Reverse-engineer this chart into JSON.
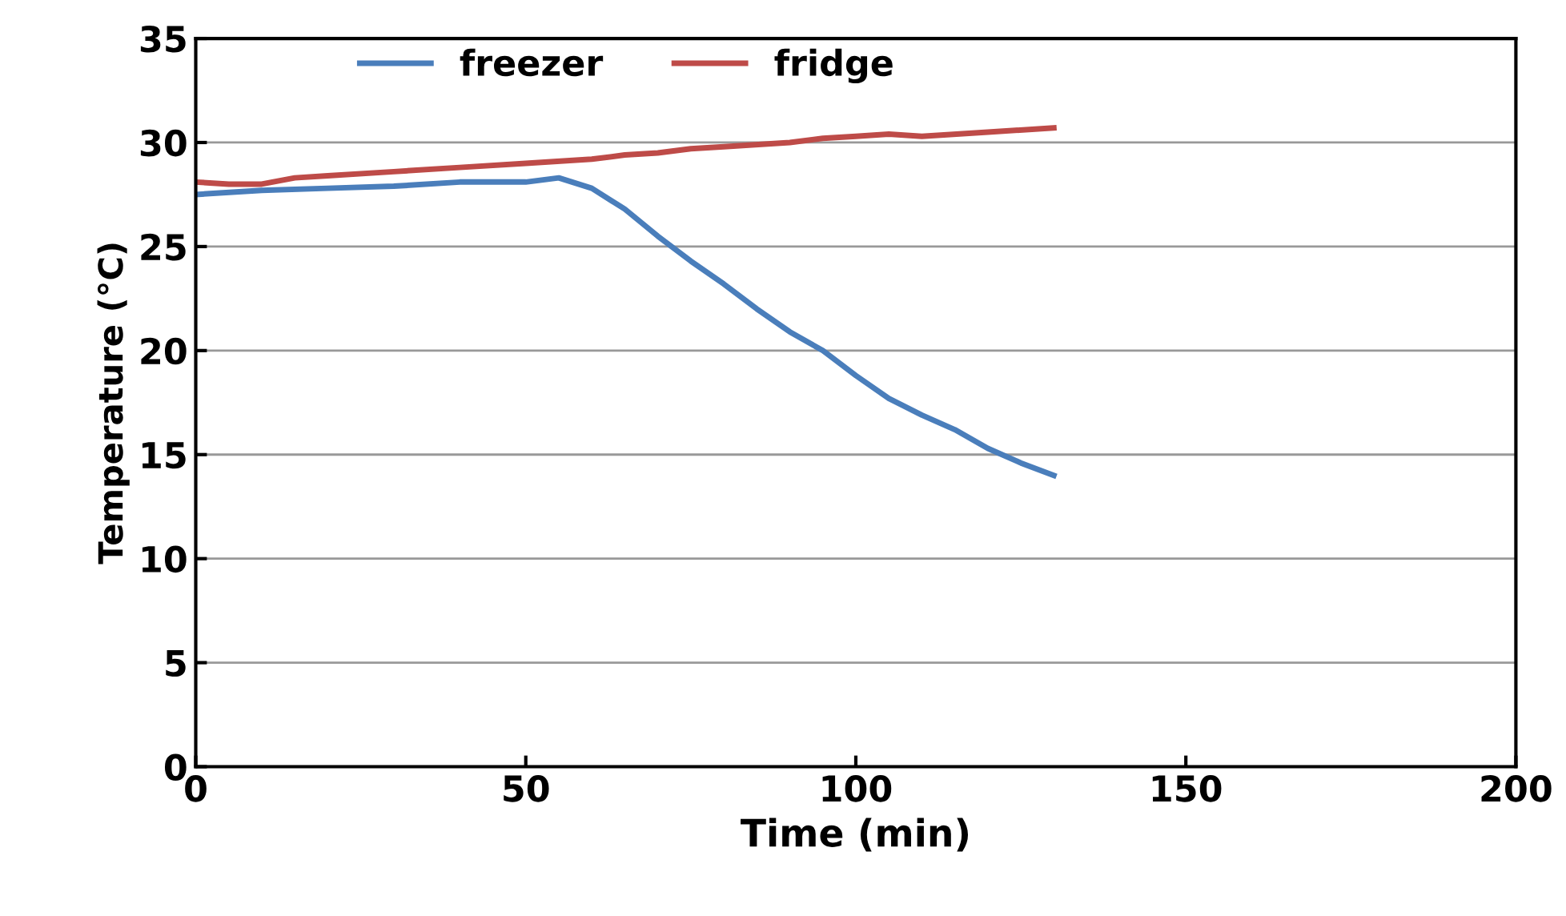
{
  "chart_data": {
    "type": "line",
    "xlabel": "Time (min)",
    "ylabel": "Temperature (°C)",
    "xlim": [
      0,
      200
    ],
    "xticks": [
      0,
      50,
      100,
      150,
      200
    ],
    "ylim": [
      0,
      35
    ],
    "yticks": [
      0,
      5,
      10,
      15,
      20,
      25,
      30,
      35
    ],
    "grid": "y",
    "legend": "top left",
    "marker": "none",
    "line_style": "solid",
    "series": [
      {
        "name": "freezer",
        "color": "#4a7ebb",
        "x": [
          0,
          10,
          20,
          30,
          40,
          50,
          55,
          60,
          65,
          70,
          75,
          80,
          85,
          90,
          95,
          100,
          105,
          110,
          115,
          120,
          125,
          130
        ],
        "values": [
          27.5,
          27.7,
          27.8,
          27.9,
          28.1,
          28.1,
          28.3,
          27.8,
          26.8,
          25.5,
          24.3,
          23.2,
          22.0,
          20.9,
          20.0,
          18.8,
          17.7,
          16.9,
          16.2,
          15.3,
          14.6,
          14.0
        ]
      },
      {
        "name": "fridge",
        "color": "#be4b48",
        "x": [
          0,
          5,
          10,
          15,
          20,
          30,
          40,
          50,
          60,
          65,
          70,
          75,
          80,
          90,
          95,
          100,
          105,
          110,
          120,
          130
        ],
        "values": [
          28.1,
          28.0,
          28.0,
          28.3,
          28.4,
          28.6,
          28.8,
          29.0,
          29.2,
          29.4,
          29.5,
          29.7,
          29.8,
          30.0,
          30.2,
          30.3,
          30.4,
          30.3,
          30.5,
          30.7
        ]
      }
    ]
  }
}
